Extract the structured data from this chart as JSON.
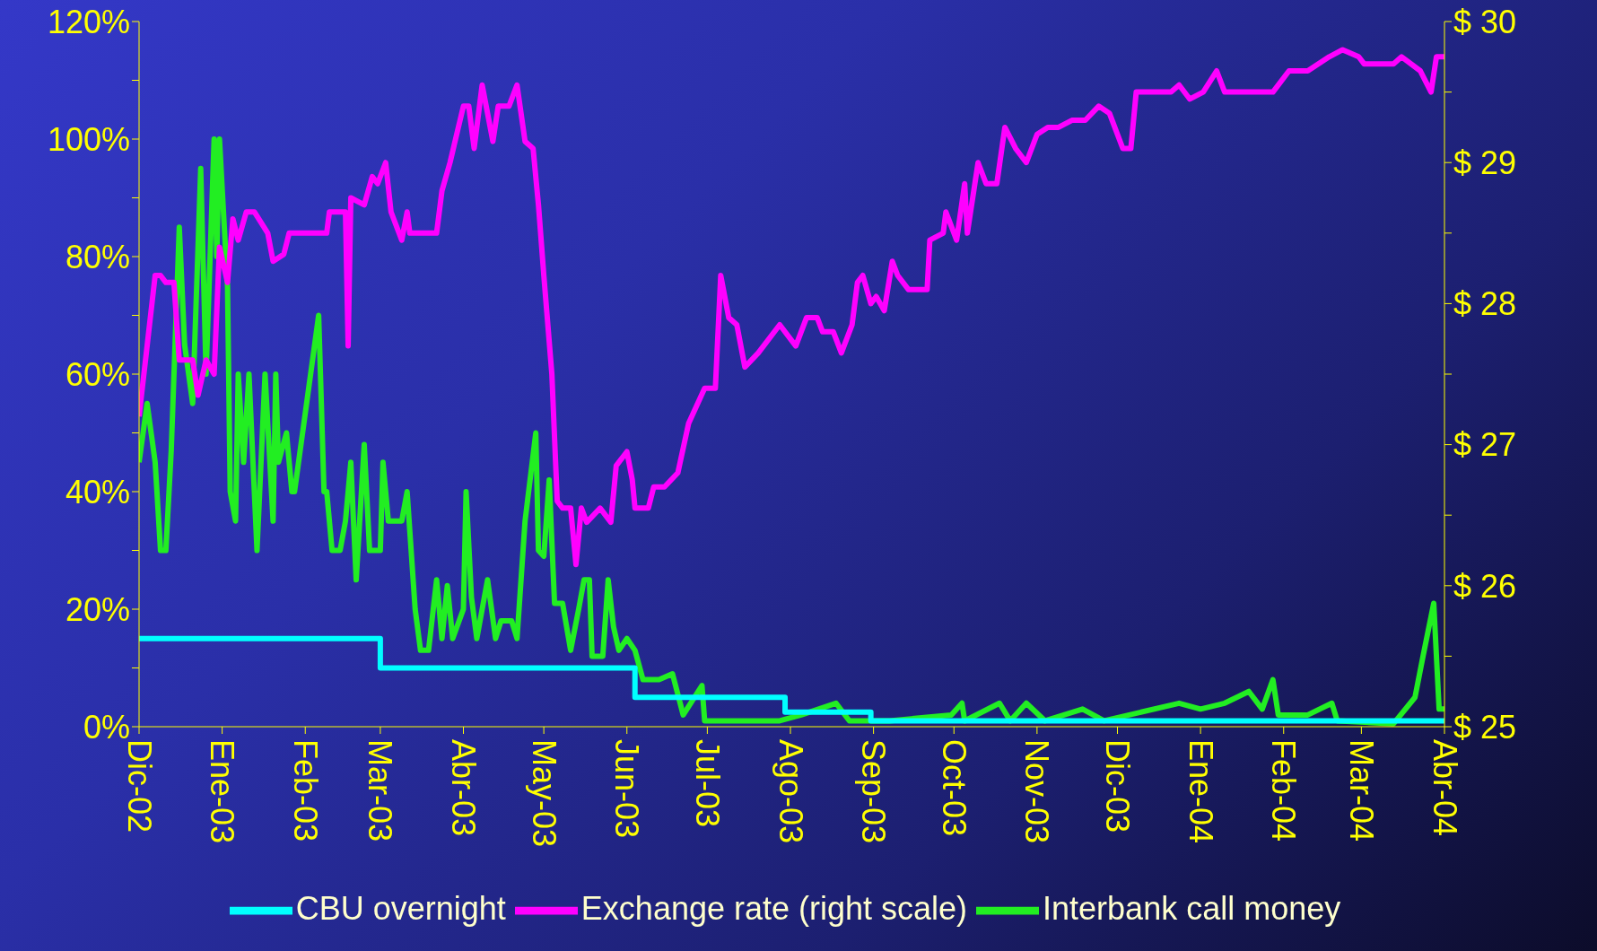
{
  "chart_data": {
    "type": "line",
    "legend": "bottom",
    "marker": "none",
    "line_style": "solid",
    "xlim": [
      "2002-12-01",
      "2004-04-01"
    ],
    "xticks": [
      {
        "value": "2002-12-01",
        "label": "Dic-02"
      },
      {
        "value": "2003-01-01",
        "label": "Ene-03"
      },
      {
        "value": "2003-02-01",
        "label": "Feb-03"
      },
      {
        "value": "2003-03-01",
        "label": "Mar-03"
      },
      {
        "value": "2003-04-01",
        "label": "Abr-03"
      },
      {
        "value": "2003-05-01",
        "label": "May-03"
      },
      {
        "value": "2003-06-01",
        "label": "Jun-03"
      },
      {
        "value": "2003-07-01",
        "label": "Jul-03"
      },
      {
        "value": "2003-08-01",
        "label": "Ago-03"
      },
      {
        "value": "2003-09-01",
        "label": "Sep-03"
      },
      {
        "value": "2003-10-01",
        "label": "Oct-03"
      },
      {
        "value": "2003-11-01",
        "label": "Nov-03"
      },
      {
        "value": "2003-12-01",
        "label": "Dic-03"
      },
      {
        "value": "2004-01-01",
        "label": "Ene-04"
      },
      {
        "value": "2004-02-01",
        "label": "Feb-04"
      },
      {
        "value": "2004-03-01",
        "label": "Mar-04"
      },
      {
        "value": "2004-04-01",
        "label": "Abr-04"
      }
    ],
    "ylim": [
      0,
      120
    ],
    "yticks": [
      {
        "value": 0,
        "label": "0%"
      },
      {
        "value": 10,
        "label": null
      },
      {
        "value": 20,
        "label": "20%"
      },
      {
        "value": 30,
        "label": null
      },
      {
        "value": 40,
        "label": "40%"
      },
      {
        "value": 50,
        "label": null
      },
      {
        "value": 60,
        "label": "60%"
      },
      {
        "value": 70,
        "label": null
      },
      {
        "value": 80,
        "label": "80%"
      },
      {
        "value": 90,
        "label": null
      },
      {
        "value": 100,
        "label": "100%"
      },
      {
        "value": 110,
        "label": null
      },
      {
        "value": 120,
        "label": "120%"
      }
    ],
    "y2lim": [
      25,
      30
    ],
    "y2ticks": [
      {
        "value": 25,
        "label": "$ 25"
      },
      {
        "value": 25.5,
        "label": null
      },
      {
        "value": 26,
        "label": "$ 26"
      },
      {
        "value": 26.5,
        "label": null
      },
      {
        "value": 27,
        "label": "$ 27"
      },
      {
        "value": 27.5,
        "label": null
      },
      {
        "value": 28,
        "label": "$ 28"
      },
      {
        "value": 28.5,
        "label": null
      },
      {
        "value": 29,
        "label": "$ 29"
      },
      {
        "value": 29.5,
        "label": null
      },
      {
        "value": 30,
        "label": "$ 30"
      }
    ],
    "series": [
      {
        "name": "Interbank call money",
        "color": "#22ee22",
        "x": [
          "2002-12-01",
          "2002-12-04",
          "2002-12-07",
          "2002-12-09",
          "2002-12-11",
          "2002-12-13",
          "2002-12-16",
          "2002-12-18",
          "2002-12-21",
          "2002-12-24",
          "2002-12-26",
          "2002-12-29",
          "2002-12-30",
          "2002-12-31",
          "2003-01-03",
          "2003-01-04",
          "2003-01-06",
          "2003-01-07",
          "2003-01-09",
          "2003-01-11",
          "2003-01-12",
          "2003-01-14",
          "2003-01-17",
          "2003-01-20",
          "2003-01-21",
          "2003-01-22",
          "2003-01-25",
          "2003-01-27",
          "2003-01-28",
          "2003-02-06",
          "2003-02-08",
          "2003-02-09",
          "2003-02-11",
          "2003-02-14",
          "2003-02-16",
          "2003-02-18",
          "2003-02-20",
          "2003-02-23",
          "2003-02-25",
          "2003-03-01",
          "2003-03-02",
          "2003-03-04",
          "2003-03-09",
          "2003-03-11",
          "2003-03-14",
          "2003-03-16",
          "2003-03-19",
          "2003-03-22",
          "2003-03-24",
          "2003-03-26",
          "2003-03-28",
          "2003-04-01",
          "2003-04-02",
          "2003-04-04",
          "2003-04-06",
          "2003-04-10",
          "2003-04-13",
          "2003-04-15",
          "2003-04-19",
          "2003-04-21",
          "2003-04-24",
          "2003-04-28",
          "2003-04-29",
          "2003-05-01",
          "2003-05-03",
          "2003-05-05",
          "2003-05-08",
          "2003-05-11",
          "2003-05-14",
          "2003-05-16",
          "2003-05-18",
          "2003-05-19",
          "2003-05-23",
          "2003-05-25",
          "2003-05-27",
          "2003-05-29",
          "2003-06-01",
          "2003-06-04",
          "2003-06-07",
          "2003-06-13",
          "2003-06-18",
          "2003-06-22",
          "2003-06-29",
          "2003-06-30",
          "2003-07-28",
          "2003-08-05",
          "2003-08-18",
          "2003-08-23",
          "2003-09-07",
          "2003-09-30",
          "2003-10-04",
          "2003-10-05",
          "2003-10-18",
          "2003-10-22",
          "2003-10-28",
          "2003-11-04",
          "2003-11-18",
          "2003-11-26",
          "2003-12-24",
          "2004-01-01",
          "2004-01-10",
          "2004-01-19",
          "2004-01-24",
          "2004-01-28",
          "2004-01-30",
          "2004-02-10",
          "2004-02-19",
          "2004-02-21",
          "2004-03-13",
          "2004-03-21",
          "2004-03-24",
          "2004-03-28",
          "2004-03-30",
          "2004-04-01"
        ],
        "values": [
          45,
          55,
          45,
          30,
          30,
          47,
          85,
          65,
          55,
          95,
          60,
          100,
          80,
          100,
          75,
          40,
          35,
          60,
          45,
          60,
          50,
          30,
          60,
          35,
          60,
          45,
          50,
          40,
          40,
          70,
          40,
          40,
          30,
          30,
          35,
          45,
          25,
          48,
          30,
          30,
          45,
          35,
          35,
          40,
          20,
          13,
          13,
          25,
          15,
          24,
          15,
          20,
          40,
          22,
          15,
          25,
          15,
          18,
          18,
          15,
          35,
          50,
          30,
          29,
          42,
          21,
          21,
          13,
          20,
          25,
          25,
          12,
          12,
          25,
          17,
          13,
          15,
          13,
          8,
          8,
          9,
          2,
          7,
          1,
          1,
          2,
          4,
          1,
          1,
          2,
          4,
          1,
          4,
          1,
          4,
          1,
          3,
          1,
          4,
          3,
          4,
          6,
          3,
          8,
          2,
          2,
          4,
          1,
          0.5,
          5,
          12,
          21,
          3,
          3
        ]
      },
      {
        "name": "CBU overnight",
        "type": "step",
        "color": "#00ffff",
        "x": [
          "2002-12-01",
          "2003-03-01",
          "2003-06-04",
          "2003-07-30",
          "2003-08-31",
          "2004-04-01"
        ],
        "values": [
          15,
          10,
          5,
          2.5,
          1,
          1
        ]
      },
      {
        "name": "Exchange rate (right scale)",
        "axis": "y2",
        "color": "#ff00ff",
        "x": [
          "2002-12-01",
          "2002-12-04",
          "2002-12-07",
          "2002-12-09",
          "2002-12-11",
          "2002-12-14",
          "2002-12-16",
          "2002-12-21",
          "2002-12-23",
          "2002-12-26",
          "2002-12-29",
          "2002-12-31",
          "2003-01-03",
          "2003-01-05",
          "2003-01-07",
          "2003-01-10",
          "2003-01-13",
          "2003-01-18",
          "2003-01-20",
          "2003-01-24",
          "2003-01-26",
          "2003-02-09",
          "2003-02-10",
          "2003-02-16",
          "2003-02-17",
          "2003-02-18",
          "2003-02-23",
          "2003-02-26",
          "2003-02-28",
          "2003-03-03",
          "2003-03-05",
          "2003-03-09",
          "2003-03-11",
          "2003-03-12",
          "2003-03-16",
          "2003-03-22",
          "2003-03-24",
          "2003-03-27",
          "2003-04-01",
          "2003-04-03",
          "2003-04-05",
          "2003-04-08",
          "2003-04-10",
          "2003-04-12",
          "2003-04-14",
          "2003-04-18",
          "2003-04-21",
          "2003-04-24",
          "2003-04-27",
          "2003-04-29",
          "2003-05-01",
          "2003-05-04",
          "2003-05-06",
          "2003-05-08",
          "2003-05-11",
          "2003-05-13",
          "2003-05-15",
          "2003-05-17",
          "2003-05-22",
          "2003-05-26",
          "2003-05-28",
          "2003-06-01",
          "2003-06-03",
          "2003-06-04",
          "2003-06-09",
          "2003-06-11",
          "2003-06-15",
          "2003-06-20",
          "2003-06-24",
          "2003-06-30",
          "2003-07-04",
          "2003-07-06",
          "2003-07-09",
          "2003-07-12",
          "2003-07-15",
          "2003-07-20",
          "2003-07-28",
          "2003-08-03",
          "2003-08-07",
          "2003-08-11",
          "2003-08-13",
          "2003-08-17",
          "2003-08-20",
          "2003-08-24",
          "2003-08-26",
          "2003-08-28",
          "2003-08-31",
          "2003-09-02",
          "2003-09-05",
          "2003-09-08",
          "2003-09-10",
          "2003-09-14",
          "2003-09-21",
          "2003-09-22",
          "2003-09-27",
          "2003-09-28",
          "2003-10-02",
          "2003-10-05",
          "2003-10-06",
          "2003-10-10",
          "2003-10-13",
          "2003-10-17",
          "2003-10-20",
          "2003-10-24",
          "2003-10-28",
          "2003-11-01",
          "2003-11-05",
          "2003-11-09",
          "2003-11-14",
          "2003-11-19",
          "2003-11-24",
          "2003-11-28",
          "2003-12-03",
          "2003-12-06",
          "2003-12-08",
          "2003-12-15",
          "2003-12-21",
          "2003-12-24",
          "2003-12-28",
          "2004-01-02",
          "2004-01-07",
          "2004-01-10",
          "2004-01-15",
          "2004-01-20",
          "2004-01-28",
          "2004-02-03",
          "2004-02-10",
          "2004-02-18",
          "2004-02-23",
          "2004-02-29",
          "2004-03-02",
          "2004-03-13",
          "2004-03-16",
          "2004-03-23",
          "2004-03-27",
          "2004-03-29",
          "2004-04-01"
        ],
        "values": [
          27.2,
          27.7,
          28.2,
          28.2,
          28.15,
          28.15,
          27.6,
          27.6,
          27.35,
          27.6,
          27.5,
          28.4,
          28.15,
          28.6,
          28.45,
          28.65,
          28.65,
          28.5,
          28.3,
          28.35,
          28.5,
          28.5,
          28.65,
          28.65,
          27.7,
          28.75,
          28.7,
          28.9,
          28.85,
          29.0,
          28.65,
          28.45,
          28.65,
          28.5,
          28.5,
          28.5,
          28.8,
          29.0,
          29.4,
          29.4,
          29.1,
          29.55,
          29.35,
          29.15,
          29.4,
          29.4,
          29.55,
          29.15,
          29.1,
          28.7,
          28.2,
          27.5,
          26.6,
          26.55,
          26.55,
          26.15,
          26.55,
          26.45,
          26.55,
          26.45,
          26.85,
          26.95,
          26.75,
          26.55,
          26.55,
          26.7,
          26.7,
          26.8,
          27.15,
          27.4,
          27.4,
          28.2,
          27.9,
          27.85,
          27.55,
          27.65,
          27.85,
          27.7,
          27.9,
          27.9,
          27.8,
          27.8,
          27.65,
          27.85,
          28.15,
          28.2,
          28.0,
          28.05,
          27.95,
          28.3,
          28.2,
          28.1,
          28.1,
          28.45,
          28.5,
          28.65,
          28.45,
          28.85,
          28.5,
          29.0,
          28.85,
          28.85,
          29.25,
          29.1,
          29.0,
          29.2,
          29.25,
          29.25,
          29.3,
          29.3,
          29.4,
          29.35,
          29.1,
          29.1,
          29.5,
          29.5,
          29.5,
          29.55,
          29.45,
          29.5,
          29.65,
          29.5,
          29.5,
          29.5,
          29.5,
          29.65,
          29.65,
          29.75,
          29.8,
          29.75,
          29.7,
          29.7,
          29.75,
          29.65,
          29.5,
          29.75,
          29.75
        ]
      }
    ]
  }
}
